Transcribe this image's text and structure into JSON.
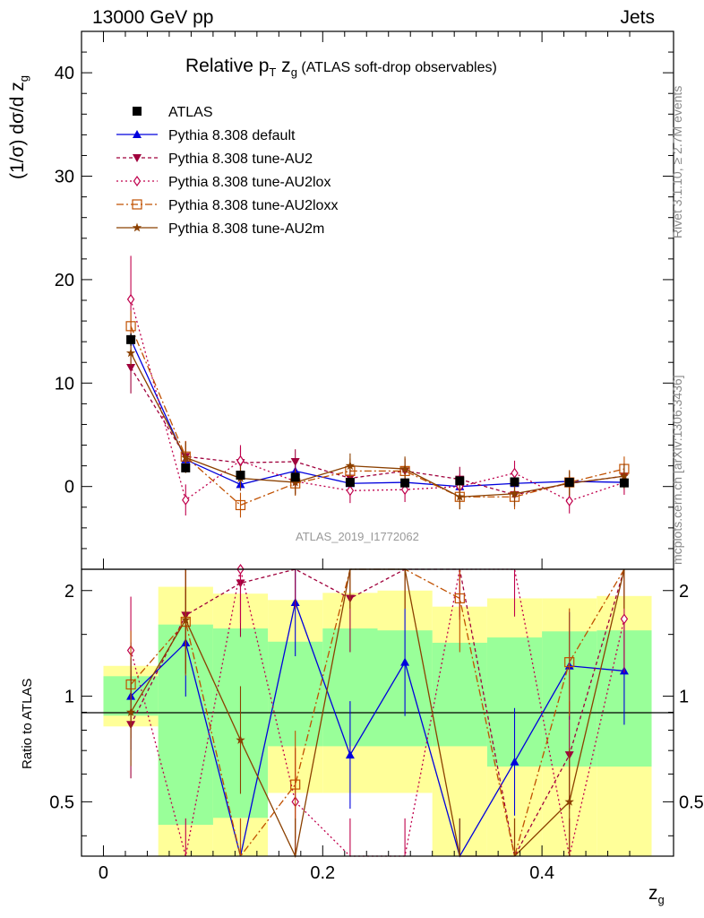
{
  "header": {
    "left": "13000 GeV pp",
    "right": "Jets"
  },
  "side": {
    "rivet": "Rivet 3.1.10, ≥ 2.7M events",
    "mcplots": "mcplots.cern.ch [arXiv:1306.3436]"
  },
  "chart_data": {
    "type": "line",
    "title_main": "Relative p",
    "title_sub1": "T",
    "title_mid": " z",
    "title_sub2": "g",
    "title_tail": " (ATLAS soft-drop observables)",
    "ylabel_main": "(1/σ) dσ/d z",
    "ylabel_sub": "g",
    "ratio_ylabel": "Ratio to ATLAS",
    "xlabel_main": "z",
    "xlabel_sub": "g",
    "watermark": "ATLAS_2019_I1772062",
    "xlim": [
      -0.02,
      0.52
    ],
    "ylim": [
      -8,
      44
    ],
    "ratio_ylim": [
      0.35,
      2.3
    ],
    "x_ticks": [
      "0",
      "0.2",
      "0.4"
    ],
    "y_ticks": [
      "0",
      "10",
      "20",
      "30",
      "40"
    ],
    "ratio_ticks": [
      "0.5",
      "1",
      "2"
    ],
    "x": [
      0.025,
      0.075,
      0.125,
      0.175,
      0.225,
      0.275,
      0.325,
      0.375,
      0.425,
      0.475
    ],
    "data": {
      "name": "ATLAS",
      "values": [
        14.2,
        1.8,
        1.1,
        0.9,
        0.4,
        0.35,
        0.55,
        0.45,
        0.4,
        0.35
      ],
      "errors": [
        0.6,
        0.4,
        0.35,
        0.35,
        0.25,
        0.25,
        0.25,
        0.25,
        0.25,
        0.2
      ]
    },
    "band_inner": [
      [
        0.88,
        1.14
      ],
      [
        0.43,
        1.6
      ],
      [
        0.45,
        1.56
      ],
      [
        0.72,
        1.43
      ],
      [
        0.72,
        1.56
      ],
      [
        0.72,
        1.54
      ],
      [
        0.72,
        1.42
      ],
      [
        0.63,
        1.47
      ],
      [
        0.63,
        1.53
      ],
      [
        0.63,
        1.54
      ]
    ],
    "band_outer": [
      [
        0.82,
        1.22
      ],
      [
        0.35,
        2.05
      ],
      [
        0.35,
        1.96
      ],
      [
        0.53,
        1.88
      ],
      [
        0.53,
        1.97
      ],
      [
        0.53,
        2.0
      ],
      [
        0.35,
        1.8
      ],
      [
        0.35,
        1.9
      ],
      [
        0.35,
        1.9
      ],
      [
        0.35,
        1.93
      ]
    ],
    "series": [
      {
        "name": "Pythia 8.308 default",
        "color": "#0000dd",
        "dash": "",
        "marker": "triangle-up",
        "values": [
          14.2,
          2.6,
          0.2,
          1.5,
          0.3,
          0.4,
          0.0,
          0.3,
          0.5,
          0.4
        ],
        "errors": [
          0.5,
          0.6,
          0.6,
          0.6,
          0.5,
          0.5,
          0.5,
          0.5,
          0.5,
          0.5
        ],
        "ratio": [
          1.0,
          1.42,
          0.18,
          1.85,
          0.68,
          1.25,
          0.2,
          0.65,
          1.22,
          1.18
        ]
      },
      {
        "name": "Pythia 8.308 tune-AU2",
        "color": "#a0003c",
        "dash": "4,3",
        "marker": "triangle-down",
        "values": [
          11.5,
          2.9,
          2.3,
          2.4,
          0.8,
          1.5,
          0.7,
          -0.8,
          0.3,
          1.0
        ],
        "errors": [
          2.5,
          1.5,
          1.5,
          1.2,
          1.2,
          1.2,
          1.2,
          1.2,
          1.2,
          1.2
        ],
        "ratio": [
          0.83,
          1.7,
          2.1,
          2.7,
          1.9,
          2.6,
          2.4,
          0.2,
          0.68,
          2.6
        ]
      },
      {
        "name": "Pythia 8.308 tune-AU2lox",
        "color": "#c0004c",
        "dash": "2,3",
        "marker": "diamond",
        "values": [
          18.1,
          -1.3,
          2.5,
          0.5,
          -0.4,
          -0.3,
          0.0,
          1.3,
          -1.4,
          0.4
        ],
        "errors": [
          4.2,
          1.5,
          1.5,
          1.2,
          1.2,
          1.2,
          1.2,
          1.2,
          1.2,
          1.2
        ],
        "ratio": [
          1.35,
          0.2,
          2.3,
          0.5,
          0.2,
          0.2,
          2.35,
          2.4,
          0.2,
          1.66
        ]
      },
      {
        "name": "Pythia 8.308 tune-AU2loxx",
        "color": "#c05000",
        "dash": "8,3,2,3",
        "marker": "square-open",
        "values": [
          15.5,
          2.9,
          -1.8,
          0.3,
          1.5,
          1.5,
          -1.0,
          -1.0,
          0.4,
          1.7
        ],
        "errors": [
          1.5,
          1.5,
          1.2,
          1.2,
          1.2,
          1.2,
          1.2,
          1.2,
          1.2,
          1.2
        ],
        "ratio": [
          1.08,
          1.63,
          0.2,
          0.56,
          2.6,
          2.6,
          1.9,
          0.2,
          1.25,
          2.6
        ]
      },
      {
        "name": "Pythia 8.308 tune-AU2m",
        "color": "#8b4000",
        "dash": "",
        "marker": "star",
        "values": [
          12.9,
          2.8,
          0.8,
          0.4,
          2.0,
          1.7,
          -1.0,
          -0.7,
          0.3,
          1.0
        ],
        "errors": [
          1.2,
          1.5,
          1.2,
          1.2,
          1.2,
          1.2,
          1.2,
          1.2,
          1.2,
          1.2
        ],
        "ratio": [
          0.9,
          1.65,
          0.75,
          0.2,
          2.6,
          2.6,
          0.2,
          0.2,
          0.5,
          2.6
        ]
      }
    ]
  }
}
